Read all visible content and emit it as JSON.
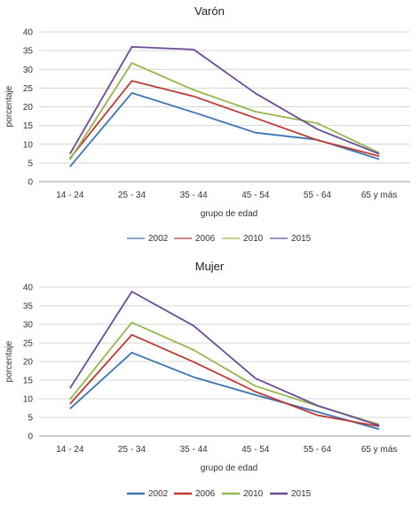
{
  "chart_data": [
    {
      "type": "line",
      "title": "Varón",
      "xlabel": "grupo de edad",
      "ylabel": "porcentaje",
      "categories": [
        "14 - 24",
        "25 - 34",
        "35 - 44",
        "45 - 54",
        "55 - 64",
        "65 y más"
      ],
      "ylim": [
        0,
        40
      ],
      "yticks": [
        0,
        5,
        10,
        15,
        20,
        25,
        30,
        35,
        40
      ],
      "grid": true,
      "legend": "bottom",
      "series": [
        {
          "name": "2002",
          "color": "#3a73b5",
          "values": [
            4,
            23.7,
            18.5,
            13.1,
            11.2,
            6.0
          ]
        },
        {
          "name": "2006",
          "color": "#be3a34",
          "values": [
            6.2,
            26.9,
            22.8,
            17.0,
            11.1,
            6.8
          ]
        },
        {
          "name": "2010",
          "color": "#95b84a",
          "values": [
            5.9,
            31.7,
            24.5,
            18.7,
            15.6,
            7.7
          ]
        },
        {
          "name": "2015",
          "color": "#6e4a96",
          "values": [
            7.4,
            36.0,
            35.3,
            23.6,
            14.0,
            7.4
          ]
        }
      ]
    },
    {
      "type": "line",
      "title": "Mujer",
      "xlabel": "grupo de edad",
      "ylabel": "porcentaje",
      "categories": [
        "14 - 24",
        "25 - 34",
        "35 - 44",
        "45 - 54",
        "55 - 64",
        "65 y más"
      ],
      "ylim": [
        0,
        40
      ],
      "yticks": [
        0,
        5,
        10,
        15,
        20,
        25,
        30,
        35,
        40
      ],
      "grid": true,
      "legend": "bottom",
      "series": [
        {
          "name": "2002",
          "color": "#3a73b5",
          "values": [
            7.3,
            22.4,
            15.8,
            11.0,
            6.5,
            1.8
          ]
        },
        {
          "name": "2006",
          "color": "#be3a34",
          "values": [
            8.6,
            27.2,
            19.9,
            11.9,
            5.6,
            2.6
          ]
        },
        {
          "name": "2010",
          "color": "#95b84a",
          "values": [
            9.8,
            30.5,
            23.1,
            13.4,
            8.1,
            3.1
          ]
        },
        {
          "name": "2015",
          "color": "#6e4a96",
          "values": [
            12.8,
            38.8,
            29.6,
            15.5,
            8.2,
            2.8
          ]
        }
      ]
    }
  ]
}
